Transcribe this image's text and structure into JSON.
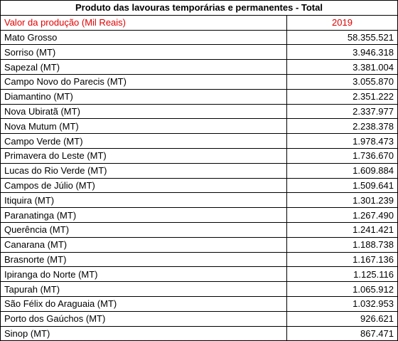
{
  "table": {
    "title": "Produto das lavouras temporárias e permanentes - Total",
    "header": [
      "Valor da produção (Mil Reais)",
      "2019"
    ],
    "rows": [
      [
        "Mato Grosso",
        "58.355.521"
      ],
      [
        "Sorriso (MT)",
        "3.946.318"
      ],
      [
        "Sapezal (MT)",
        "3.381.004"
      ],
      [
        "Campo Novo do Parecis (MT)",
        "3.055.870"
      ],
      [
        "Diamantino (MT)",
        "2.351.222"
      ],
      [
        "Nova Ubiratã (MT)",
        "2.337.977"
      ],
      [
        "Nova Mutum (MT)",
        "2.238.378"
      ],
      [
        "Campo Verde (MT)",
        "1.978.473"
      ],
      [
        "Primavera do Leste (MT)",
        "1.736.670"
      ],
      [
        "Lucas do Rio Verde (MT)",
        "1.609.884"
      ],
      [
        "Campos de Júlio (MT)",
        "1.509.641"
      ],
      [
        "Itiquira (MT)",
        "1.301.239"
      ],
      [
        "Paranatinga (MT)",
        "1.267.490"
      ],
      [
        "Querência (MT)",
        "1.241.421"
      ],
      [
        "Canarana (MT)",
        "1.188.738"
      ],
      [
        "Brasnorte (MT)",
        "1.167.136"
      ],
      [
        "Ipiranga do Norte (MT)",
        "1.125.116"
      ],
      [
        "Tapurah (MT)",
        "1.065.912"
      ],
      [
        "São Félix do Araguaia (MT)",
        "1.032.953"
      ],
      [
        "Porto dos Gaúchos (MT)",
        "926.621"
      ],
      [
        "Sinop (MT)",
        "867.471"
      ]
    ]
  }
}
